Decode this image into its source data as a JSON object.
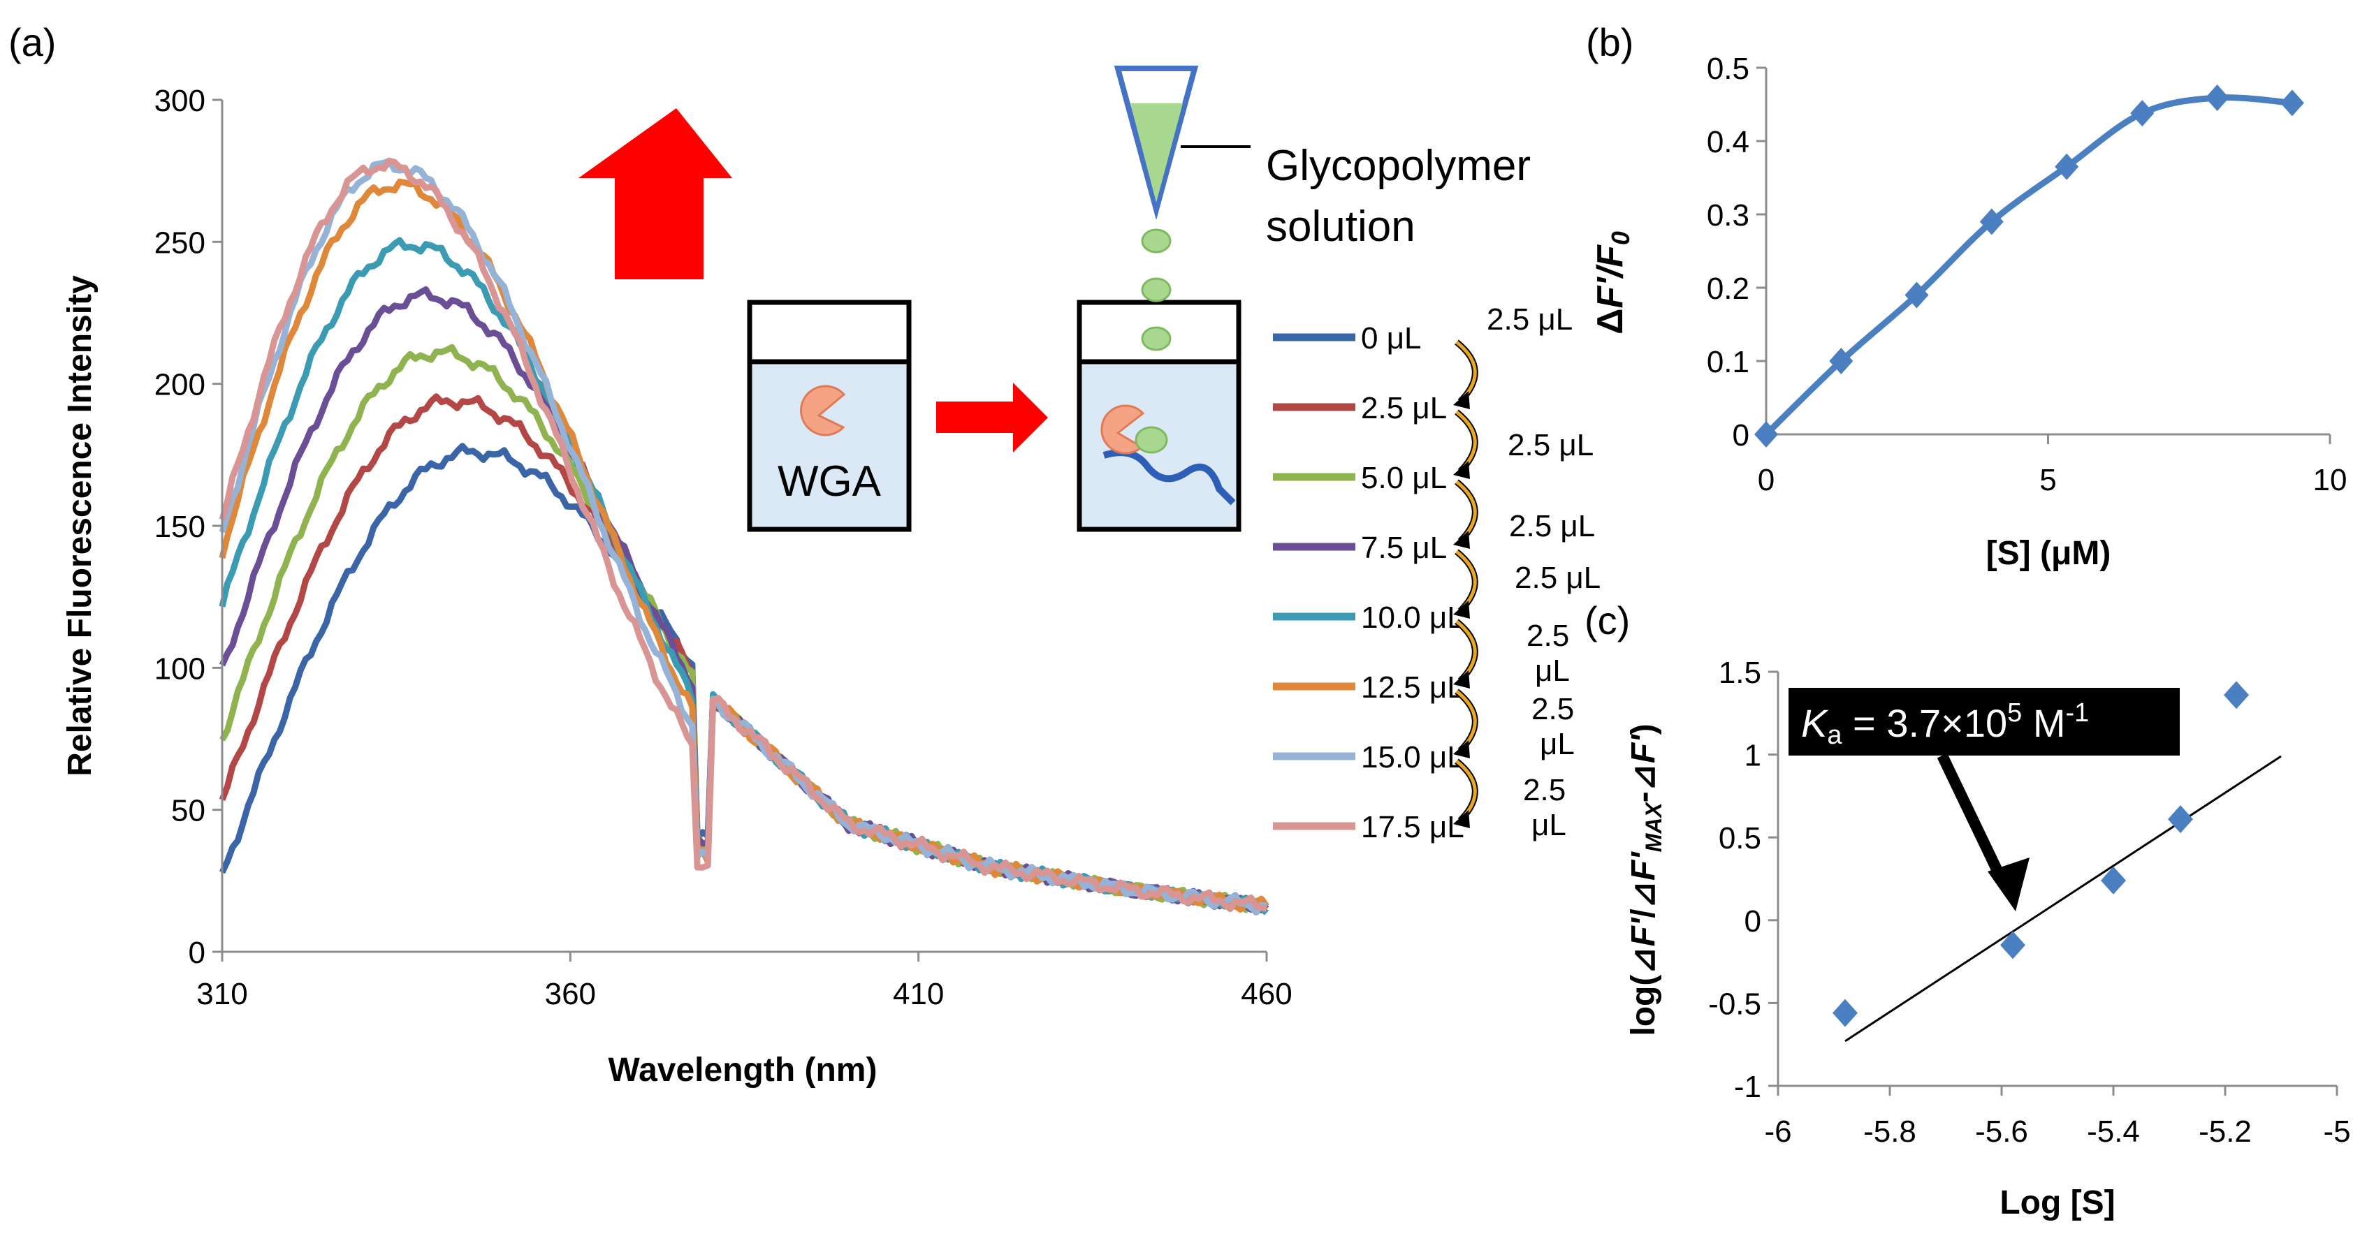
{
  "panel_labels": {
    "a": "(a)",
    "b": "(b)",
    "c": "(c)"
  },
  "colors": {
    "s0": "#3a66a8",
    "s1": "#b34746",
    "s2": "#8fb34f",
    "s3": "#6a4f96",
    "s4": "#3a9bb3",
    "s5": "#e0883a",
    "s6": "#94b3d6",
    "s7": "#d99594",
    "blue_line": "#4a7fc1",
    "red_arrow": "#ff0000",
    "green_drop": "#a8d890",
    "pipette": "#4472c4",
    "cuvette_fill": "#dbe8f5",
    "wga": "#f4a484",
    "polymer": "#2e5fb8",
    "curved_arrow": "#e8a822"
  },
  "inset": {
    "wga_label": "WGA",
    "glycopolymer_line1": "Glycopolymer",
    "glycopolymer_line2": "solution"
  },
  "steps": [
    "2.5 μL",
    "2.5 μL",
    "2.5 μL",
    "2.5 μL",
    "2.5 μL",
    "2.5 μL",
    "2.5 μL"
  ],
  "chart_data": [
    {
      "type": "line",
      "panel": "(a)",
      "title": "",
      "xlabel": "Wavelength (nm)",
      "ylabel": "Relative Fluorescence Intensity",
      "xlim": [
        310,
        460
      ],
      "ylim": [
        0,
        300
      ],
      "xticks": [
        "310",
        "360",
        "410",
        "460"
      ],
      "yticks": [
        "0",
        "50",
        "100",
        "150",
        "200",
        "250",
        "300"
      ],
      "grid": false,
      "legend_position": "right",
      "series": [
        {
          "name": "0 μL",
          "start": 27,
          "peak": 176,
          "peak_x": 346
        },
        {
          "name": "2.5 μL",
          "start": 53,
          "peak": 194,
          "peak_x": 343
        },
        {
          "name": "5.0 μL",
          "start": 75,
          "peak": 211,
          "peak_x": 341
        },
        {
          "name": "7.5 μL",
          "start": 99,
          "peak": 231,
          "peak_x": 339
        },
        {
          "name": "10.0 μL",
          "start": 122,
          "peak": 249,
          "peak_x": 337
        },
        {
          "name": "12.5 μL",
          "start": 141,
          "peak": 270,
          "peak_x": 335
        },
        {
          "name": "15.0 μL",
          "start": 147,
          "peak": 277,
          "peak_x": 334
        },
        {
          "name": "17.5 μL",
          "start": 152,
          "peak": 277,
          "peak_x": 333
        }
      ],
      "tail": {
        "x": [
          380,
          400,
          420,
          440,
          460
        ],
        "y": [
          90,
          45,
          30,
          22,
          16
        ]
      }
    },
    {
      "type": "line",
      "panel": "(b)",
      "xlabel": "[S] (μM)",
      "ylabel": "ΔF'/F0",
      "xlim": [
        0,
        10
      ],
      "ylim": [
        0,
        0.5
      ],
      "xticks": [
        "0",
        "5",
        "10"
      ],
      "yticks": [
        "0",
        "0.1",
        "0.2",
        "0.3",
        "0.4",
        "0.5"
      ],
      "grid": false,
      "x": [
        0,
        1.33,
        2.67,
        4.0,
        5.33,
        6.67,
        8.0,
        9.33
      ],
      "y": [
        0.0,
        0.1,
        0.19,
        0.29,
        0.365,
        0.438,
        0.459,
        0.452
      ]
    },
    {
      "type": "scatter",
      "panel": "(c)",
      "xlabel": "Log [S]",
      "ylabel": "log(⊿F'/⊿F'MAX-⊿F')",
      "xlim": [
        -6,
        -5
      ],
      "ylim": [
        -1,
        1.5
      ],
      "xticks": [
        "-6",
        "-5.8",
        "-5.6",
        "-5.4",
        "-5.2",
        "-5"
      ],
      "yticks": [
        "-1",
        "-0.5",
        "0",
        "0.5",
        "1",
        "1.5"
      ],
      "grid": false,
      "x": [
        -5.88,
        -5.58,
        -5.4,
        -5.28,
        -5.18
      ],
      "y": [
        -0.56,
        -0.15,
        0.24,
        0.61,
        1.36
      ],
      "fit_line": {
        "x": [
          -5.88,
          -5.1
        ],
        "y": [
          -0.73,
          0.99
        ]
      },
      "annotation": "Ka = 3.7×10^5 M^-1"
    }
  ]
}
